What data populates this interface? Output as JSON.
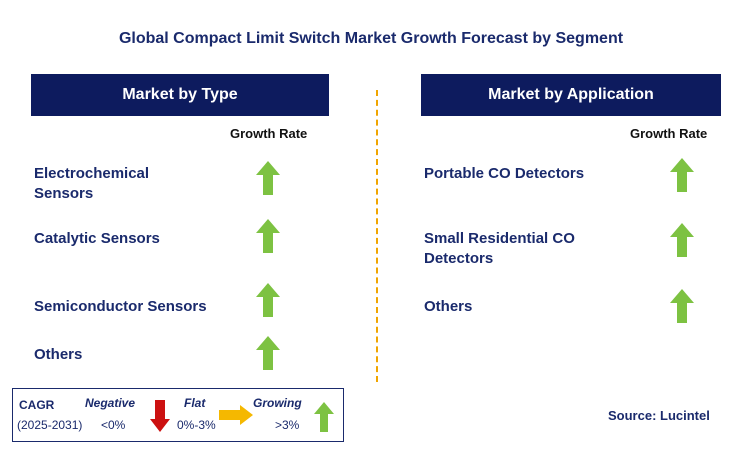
{
  "title": "Global Compact Limit Switch Market Growth Forecast by Segment",
  "left_panel": {
    "header": "Market by Type",
    "growth_label": "Growth Rate",
    "items": [
      {
        "label_line1": "Electrochemical",
        "label_line2": "Sensors",
        "trend": "growing"
      },
      {
        "label_line1": "Catalytic Sensors",
        "label_line2": "",
        "trend": "growing"
      },
      {
        "label_line1": "Semiconductor Sensors",
        "label_line2": "",
        "trend": "growing"
      },
      {
        "label_line1": "Others",
        "label_line2": "",
        "trend": "growing"
      }
    ]
  },
  "right_panel": {
    "header": "Market by Application",
    "growth_label": "Growth Rate",
    "items": [
      {
        "label_line1": "Portable CO Detectors",
        "label_line2": "",
        "trend": "growing"
      },
      {
        "label_line1": "Small Residential CO",
        "label_line2": "Detectors",
        "trend": "growing"
      },
      {
        "label_line1": "Others",
        "label_line2": "",
        "trend": "growing"
      }
    ]
  },
  "legend": {
    "cagr_label": "CAGR",
    "period": "(2025-2031)",
    "negative_label": "Negative",
    "negative_range": "<0%",
    "flat_label": "Flat",
    "flat_range": "0%-3%",
    "growing_label": "Growing",
    "growing_range": ">3%"
  },
  "source": "Source: Lucintel",
  "colors": {
    "header_bg": "#0d1b5e",
    "text": "#1a2a6c",
    "growing": "#7dc242",
    "negative": "#cc1111",
    "flat": "#f5b800",
    "divider": "#f0a500"
  }
}
